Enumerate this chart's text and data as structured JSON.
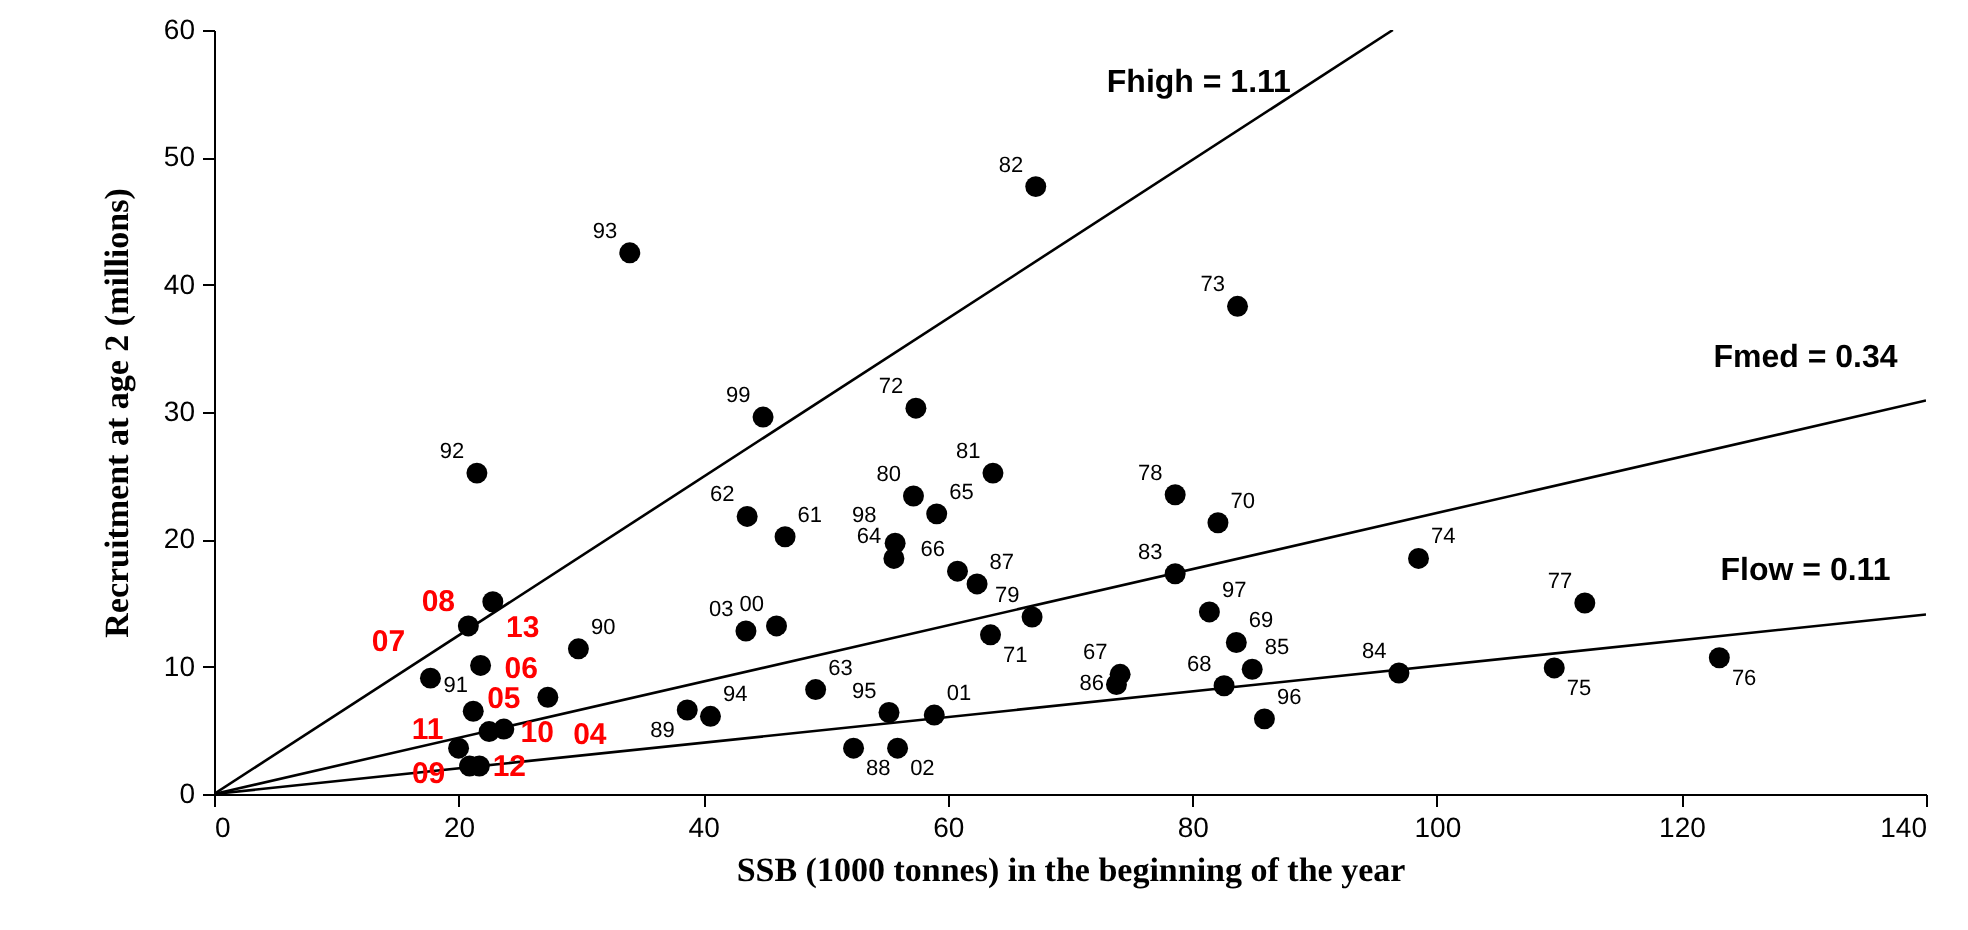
{
  "chart_data": {
    "type": "scatter",
    "xlabel": "SSB (1000 tonnes) in the beginning of the year",
    "ylabel": "Recruitment at age 2 (millions)",
    "xlim": [
      0,
      140
    ],
    "xticks": [
      0,
      20,
      40,
      60,
      80,
      100,
      120,
      140
    ],
    "ylim": [
      0,
      60
    ],
    "yticks": [
      0,
      10,
      20,
      30,
      40,
      50,
      60
    ],
    "grid": false,
    "series": [
      {
        "marker": "circle",
        "color": "#000000",
        "x": [
          46.7,
          43.6,
          49.2,
          55.6,
          59.1,
          60.8,
          74.1,
          82.6,
          83.6,
          82.1,
          63.5,
          57.4,
          83.7,
          98.5,
          109.6,
          123.1,
          112.1,
          78.6,
          66.9,
          57.2,
          63.7,
          67.2,
          78.6,
          96.9,
          84.9,
          73.8,
          62.4,
          52.3,
          38.7,
          29.8,
          21.8,
          21.5,
          34.0,
          40.6,
          55.2,
          85.9,
          81.4,
          55.7,
          44.9,
          46.0,
          58.9,
          55.9,
          43.5
        ],
        "values": [
          20.2,
          21.8,
          8.2,
          18.5,
          22.0,
          17.5,
          9.4,
          8.5,
          11.9,
          21.3,
          12.5,
          30.3,
          38.3,
          18.5,
          9.9,
          10.7,
          15.0,
          23.5,
          13.9,
          23.4,
          25.2,
          47.7,
          17.3,
          9.5,
          9.8,
          8.6,
          16.5,
          3.6,
          6.6,
          11.4,
          10.1,
          25.2,
          42.5,
          6.1,
          6.4,
          5.9,
          14.3,
          19.7,
          29.6,
          13.2,
          6.2,
          3.6,
          12.8
        ]
      },
      {
        "marker": "circle",
        "color": "#000000",
        "x": [
          27.3,
          23.7,
          21.2,
          17.7,
          20.8,
          20.0,
          22.5,
          20.9,
          21.7,
          22.8
        ],
        "values": [
          7.6,
          5.1,
          6.5,
          9.1,
          13.2,
          3.6,
          4.9,
          2.2,
          2.2,
          15.1
        ]
      },
      {
        "type": "line",
        "name": "Fhigh = 1.11",
        "color": "#000000",
        "x": [
          0,
          96.4
        ],
        "values": [
          0,
          60
        ]
      },
      {
        "type": "line",
        "name": "Fmed = 0.34",
        "color": "#000000",
        "x": [
          0,
          140
        ],
        "values": [
          0,
          30.9
        ]
      },
      {
        "type": "line",
        "name": "Flow = 0.11",
        "color": "#000000",
        "x": [
          0,
          140
        ],
        "values": [
          0,
          14.1
        ]
      }
    ],
    "annotations": [
      {
        "text": "61",
        "x": 46.7,
        "y": 20.2
      },
      {
        "text": "62",
        "x": 43.6,
        "y": 21.8
      },
      {
        "text": "63",
        "x": 49.2,
        "y": 8.2
      },
      {
        "text": "64",
        "x": 55.6,
        "y": 18.5
      },
      {
        "text": "65",
        "x": 59.1,
        "y": 22.0
      },
      {
        "text": "66",
        "x": 60.8,
        "y": 17.5
      },
      {
        "text": "67",
        "x": 74.1,
        "y": 9.4
      },
      {
        "text": "68",
        "x": 82.6,
        "y": 8.5
      },
      {
        "text": "69",
        "x": 83.6,
        "y": 11.9
      },
      {
        "text": "70",
        "x": 82.1,
        "y": 21.3
      },
      {
        "text": "71",
        "x": 63.5,
        "y": 12.5
      },
      {
        "text": "72",
        "x": 57.4,
        "y": 30.3
      },
      {
        "text": "73",
        "x": 83.7,
        "y": 38.3
      },
      {
        "text": "74",
        "x": 98.5,
        "y": 18.5
      },
      {
        "text": "75",
        "x": 109.6,
        "y": 9.9
      },
      {
        "text": "76",
        "x": 123.1,
        "y": 10.7
      },
      {
        "text": "77",
        "x": 112.1,
        "y": 15.0
      },
      {
        "text": "78",
        "x": 78.6,
        "y": 23.5
      },
      {
        "text": "79",
        "x": 66.9,
        "y": 13.9
      },
      {
        "text": "80",
        "x": 57.2,
        "y": 23.4
      },
      {
        "text": "81",
        "x": 63.7,
        "y": 25.2
      },
      {
        "text": "82",
        "x": 67.2,
        "y": 47.7
      },
      {
        "text": "83",
        "x": 78.6,
        "y": 17.3
      },
      {
        "text": "84",
        "x": 96.9,
        "y": 9.5
      },
      {
        "text": "85",
        "x": 84.9,
        "y": 9.8
      },
      {
        "text": "86",
        "x": 73.8,
        "y": 8.6
      },
      {
        "text": "87",
        "x": 62.4,
        "y": 16.5
      },
      {
        "text": "88",
        "x": 52.3,
        "y": 3.6
      },
      {
        "text": "89",
        "x": 38.7,
        "y": 6.6
      },
      {
        "text": "90",
        "x": 29.8,
        "y": 11.4
      },
      {
        "text": "91",
        "x": 21.8,
        "y": 10.1
      },
      {
        "text": "92",
        "x": 21.5,
        "y": 25.2
      },
      {
        "text": "93",
        "x": 34.0,
        "y": 42.5
      },
      {
        "text": "94",
        "x": 40.6,
        "y": 6.1
      },
      {
        "text": "95",
        "x": 55.2,
        "y": 6.4
      },
      {
        "text": "96",
        "x": 85.9,
        "y": 5.9
      },
      {
        "text": "97",
        "x": 81.4,
        "y": 14.3
      },
      {
        "text": "98",
        "x": 55.7,
        "y": 19.7
      },
      {
        "text": "99",
        "x": 44.9,
        "y": 29.6
      },
      {
        "text": "00",
        "x": 46.0,
        "y": 13.2
      },
      {
        "text": "01",
        "x": 58.9,
        "y": 6.2
      },
      {
        "text": "02",
        "x": 55.9,
        "y": 3.6
      },
      {
        "text": "03",
        "x": 43.5,
        "y": 12.8
      },
      {
        "text": "04",
        "x": 27.3,
        "y": 7.6
      },
      {
        "text": "05",
        "x": 23.7,
        "y": 5.1
      },
      {
        "text": "06",
        "x": 21.2,
        "y": 6.5
      },
      {
        "text": "07",
        "x": 17.7,
        "y": 9.1
      },
      {
        "text": "08",
        "x": 20.8,
        "y": 13.2
      },
      {
        "text": "09",
        "x": 20.0,
        "y": 3.6
      },
      {
        "text": "10",
        "x": 22.5,
        "y": 4.9
      },
      {
        "text": "11",
        "x": 20.9,
        "y": 2.2
      },
      {
        "text": "12",
        "x": 21.7,
        "y": 2.2
      },
      {
        "text": "13",
        "x": 22.8,
        "y": 15.1
      }
    ]
  }
}
